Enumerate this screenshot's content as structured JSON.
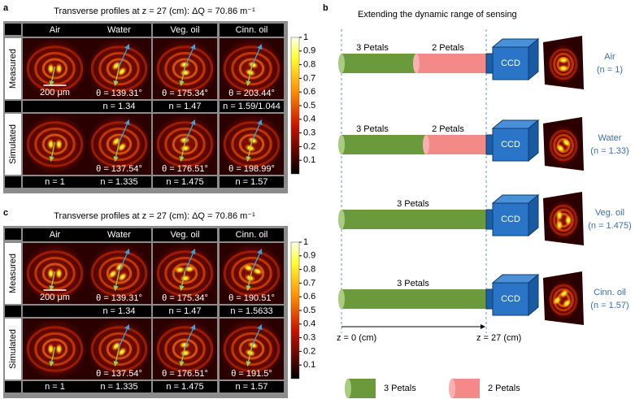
{
  "panel_a": {
    "label": "a",
    "title": "Transverse profiles at z = 27 (cm): ΔQ = 70.86 m⁻¹",
    "columns": [
      "Air",
      "Water",
      "Veg. oil",
      "Cinn. oil"
    ],
    "row_labels": [
      "Measured",
      "Simulated"
    ],
    "scale_bar": "200 μm",
    "measured_angles": [
      "θ = 139.31°",
      "θ = 175.34°",
      "θ = 203.44°"
    ],
    "measured_n": [
      "n = 1.34",
      "n = 1.47",
      "n = 1.59/1.044"
    ],
    "simulated_angles": [
      "θ = 137.54°",
      "θ = 176.51°",
      "θ = 198.99°"
    ],
    "simulated_n": [
      "n = 1",
      "n = 1.335",
      "n = 1.475",
      "n = 1.57"
    ],
    "colorbar_ticks": [
      0.1,
      0.2,
      0.3,
      0.4,
      0.5,
      0.6,
      0.7,
      0.8,
      0.9,
      1
    ]
  },
  "panel_c": {
    "label": "c",
    "title": "Transverse profiles at z = 27 (cm): ΔQ = 70.86 m⁻¹",
    "columns": [
      "Air",
      "Water",
      "Veg. oil",
      "Cinn. oil"
    ],
    "row_labels": [
      "Measured",
      "Simulated"
    ],
    "scale_bar": "200 μm",
    "measured_angles": [
      "θ = 139.31°",
      "θ = 175.34°",
      "θ = 190.51°"
    ],
    "measured_n": [
      "n = 1.34",
      "n = 1.47",
      "n = 1.5633"
    ],
    "simulated_angles": [
      "θ = 137.54°",
      "θ = 176.51°",
      "θ = 191.5°"
    ],
    "simulated_n": [
      "n = 1",
      "n = 1.335",
      "n = 1.475",
      "n = 1.57"
    ],
    "colorbar_ticks": [
      0.1,
      0.2,
      0.3,
      0.4,
      0.5,
      0.6,
      0.7,
      0.8,
      0.9,
      1
    ]
  },
  "panel_b": {
    "label": "b",
    "title": "Extending the dynamic range of sensing",
    "ccd": "CCD",
    "rows": [
      {
        "petals": [
          "3 Petals",
          "2 Petals"
        ],
        "medium": "Air",
        "n": "(n = 1)"
      },
      {
        "petals": [
          "3 Petals",
          "2 Petals"
        ],
        "medium": "Water",
        "n": "(n = 1.33)"
      },
      {
        "petals": [
          "3 Petals"
        ],
        "medium": "Veg. oil",
        "n": "(n = 1.475)"
      },
      {
        "petals": [
          "3 Petals"
        ],
        "medium": "Cinn. oil",
        "n": "(n = 1.57)"
      }
    ],
    "z_start": "z = 0 (cm)",
    "z_end": "z = 27 (cm)",
    "legend": [
      "3 Petals",
      "2 Petals"
    ]
  }
}
